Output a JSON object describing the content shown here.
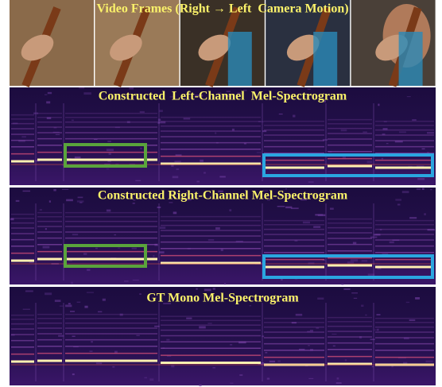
{
  "figure": {
    "video_title": "Video Frames (Right → Left  Camera Motion)",
    "spectrograms": [
      {
        "title": "Constructed  Left-Channel  Mel-Spectrogram"
      },
      {
        "title": "Constructed Right-Channel Mel-Spectrogram"
      },
      {
        "title": "GT Mono Mel-Spectrogram"
      }
    ]
  }
}
